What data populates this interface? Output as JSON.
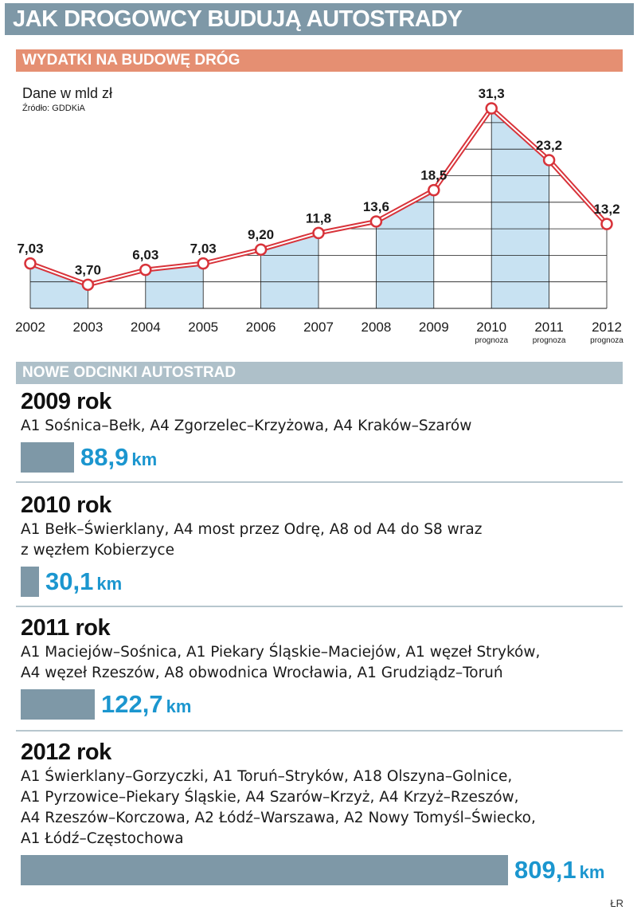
{
  "title": "JAK DROGOWCY BUDUJĄ AUTOSTRADY",
  "spending_section": {
    "heading": "WYDATKI NA BUDOWĘ DRÓG",
    "unit": "Dane w mld zł",
    "source": "Źródło: GDDKiA"
  },
  "chart_data": {
    "type": "line",
    "title": "",
    "xlabel": "",
    "ylabel": "",
    "categories": [
      "2002",
      "2003",
      "2004",
      "2005",
      "2006",
      "2007",
      "2008",
      "2009",
      "2010",
      "2011",
      "2012"
    ],
    "values": [
      7.03,
      3.7,
      6.03,
      7.03,
      9.2,
      11.8,
      13.6,
      18.5,
      31.3,
      23.2,
      13.2
    ],
    "value_labels": [
      "7,03",
      "3,70",
      "6,03",
      "7,03",
      "9,20",
      "11,8",
      "13,6",
      "18,5",
      "31,3",
      "23,2",
      "13,2"
    ],
    "sublabels": [
      "",
      "",
      "",
      "",
      "",
      "",
      "",
      "",
      "prognoza",
      "prognoza",
      "prognoza"
    ],
    "ylim": [
      0,
      31.3
    ],
    "grid": true,
    "line_color": "#d8333a",
    "shaded_area_color": "#c8e2f2",
    "gridline_color": "#1a1a1a"
  },
  "segments_section": {
    "heading": "NOWE ODCINKI AUTOSTRAD",
    "unit": "km",
    "years": [
      {
        "title": "2009 rok",
        "desc": "A1 Sośnica–Bełk, A4 Zgorzelec–Krzyżowa, A4 Kraków–Szarów",
        "km": 88.9,
        "km_label": "88,9"
      },
      {
        "title": "2010 rok",
        "desc": "A1 Bełk–Świerklany, A4 most przez Odrę, A8 od A4 do S8 wraz\nz węzłem Kobierzyce",
        "km": 30.1,
        "km_label": "30,1"
      },
      {
        "title": "2011 rok",
        "desc": "A1 Maciejów–Sośnica, A1 Piekary Śląskie–Maciejów, A1 węzeł Stryków,\nA4 węzeł Rzeszów, A8 obwodnica Wrocławia, A1 Grudziądz–Toruń",
        "km": 122.7,
        "km_label": "122,7"
      },
      {
        "title": "2012 rok",
        "desc": "A1 Świerklany–Gorzyczki, A1 Toruń–Stryków, A18 Olszyna–Golnice,\nA1 Pyrzowice–Piekary Śląskie, A4 Szarów–Krzyż, A4 Krzyż–Rzeszów,\nA4 Rzeszów–Korczowa, A2 Łódź–Warszawa, A2 Nowy Tomyśl–Świecko,\nA1 Łódź–Częstochowa",
        "km": 809.1,
        "km_label": "809,1"
      }
    ]
  },
  "credit": "ŁR"
}
